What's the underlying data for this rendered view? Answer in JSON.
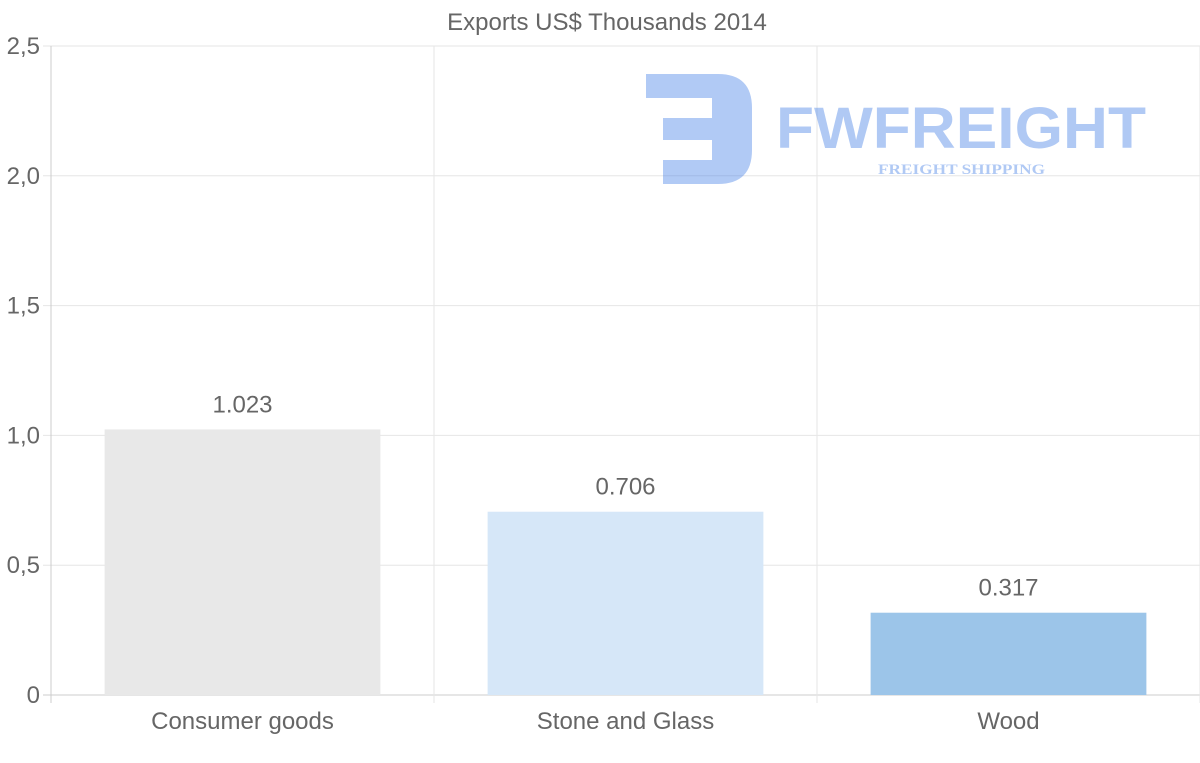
{
  "chart_data": {
    "type": "bar",
    "title": "Exports US$ Thousands 2014",
    "categories": [
      "Consumer goods",
      "Stone and Glass",
      "Wood"
    ],
    "values": [
      1.023,
      0.706,
      0.317
    ],
    "value_labels": [
      "1.023",
      "0.706",
      "0.317"
    ],
    "bar_colors": [
      "#e8e8e8",
      "#d6e7f8",
      "#9cc5e9"
    ],
    "ylim": [
      0,
      2.5
    ],
    "y_ticks": [
      {
        "value": 0,
        "label": "0"
      },
      {
        "value": 0.5,
        "label": "0,5"
      },
      {
        "value": 1.0,
        "label": "1,0"
      },
      {
        "value": 1.5,
        "label": "1,5"
      },
      {
        "value": 2.0,
        "label": "2,0"
      },
      {
        "value": 2.5,
        "label": "2,5"
      }
    ],
    "xlabel": "",
    "ylabel": "",
    "grid": true,
    "legend": "none"
  },
  "watermark": {
    "brand": "FWFREIGHT",
    "tagline": "FREIGHT SHIPPING",
    "color": "#3d7ae6"
  }
}
